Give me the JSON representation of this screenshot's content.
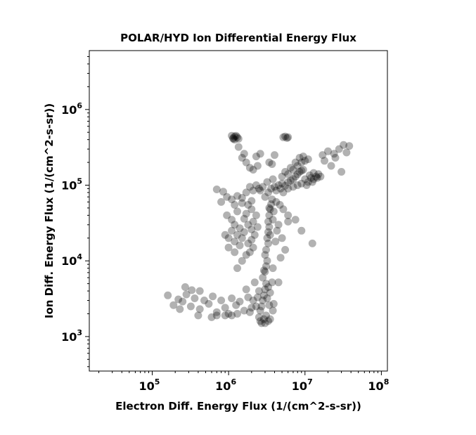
{
  "chart_data": {
    "type": "scatter",
    "title": "POLAR/HYD  Ion Differential Energy Flux",
    "xlabel": "Electron Diff. Energy Flux (1/(cm^2-s-sr))",
    "ylabel": "Ion Diff. Energy Flux (1/(cm^2-s-sr))",
    "xscale": "log",
    "yscale": "log",
    "xlim": [
      15000,
      120000000
    ],
    "ylim": [
      350,
      6000000
    ],
    "x_ticks": [
      {
        "base": "10",
        "exp": "5",
        "value": 100000
      },
      {
        "base": "10",
        "exp": "6",
        "value": 1000000
      },
      {
        "base": "10",
        "exp": "7",
        "value": 10000000
      },
      {
        "base": "10",
        "exp": "8",
        "value": 100000000
      }
    ],
    "y_ticks": [
      {
        "base": "10",
        "exp": "3",
        "value": 1000
      },
      {
        "base": "10",
        "exp": "4",
        "value": 10000
      },
      {
        "base": "10",
        "exp": "5",
        "value": 100000
      },
      {
        "base": "10",
        "exp": "6",
        "value": 1000000
      }
    ],
    "grid": false,
    "legend": "none",
    "marker_color": "#000000",
    "marker_alpha": 0.3,
    "series": [
      {
        "points": [
          [
            160000,
            3500
          ],
          [
            190000,
            2600
          ],
          [
            220000,
            3100
          ],
          [
            250000,
            2900
          ],
          [
            280000,
            3600
          ],
          [
            320000,
            2500
          ],
          [
            360000,
            3200
          ],
          [
            420000,
            2300
          ],
          [
            480000,
            3000
          ],
          [
            550000,
            2700
          ],
          [
            620000,
            3400
          ],
          [
            700000,
            2100
          ],
          [
            800000,
            3000
          ],
          [
            900000,
            2400
          ],
          [
            1000000,
            2000
          ],
          [
            1100000,
            3200
          ],
          [
            1250000,
            2600
          ],
          [
            1400000,
            2900
          ],
          [
            1600000,
            2200
          ],
          [
            1800000,
            3300
          ],
          [
            1900000,
            2100
          ],
          [
            2000000,
            2400
          ],
          [
            2100000,
            3000
          ],
          [
            1100000,
            1900
          ],
          [
            1300000,
            2000
          ],
          [
            700000,
            1900
          ],
          [
            900000,
            1900
          ],
          [
            600000,
            1800
          ],
          [
            400000,
            1900
          ],
          [
            230000,
            2300
          ],
          [
            270000,
            4500
          ],
          [
            330000,
            4100
          ],
          [
            420000,
            4000
          ],
          [
            1700000,
            4200
          ],
          [
            2500000,
            1800
          ],
          [
            2600000,
            1600
          ],
          [
            2700000,
            1500
          ],
          [
            2900000,
            1700
          ],
          [
            3000000,
            1500
          ],
          [
            3100000,
            1900
          ],
          [
            3300000,
            1600
          ],
          [
            3500000,
            1700
          ],
          [
            3800000,
            2200
          ],
          [
            3900000,
            2700
          ],
          [
            2700000,
            2500
          ],
          [
            2800000,
            3000
          ],
          [
            2900000,
            3500
          ],
          [
            3000000,
            4200
          ],
          [
            3100000,
            5000
          ],
          [
            2800000,
            6000
          ],
          [
            3000000,
            7200
          ],
          [
            3100000,
            8500
          ],
          [
            3200000,
            10000
          ],
          [
            3000000,
            12000
          ],
          [
            3100000,
            14000
          ],
          [
            3300000,
            17000
          ],
          [
            3200000,
            20000
          ],
          [
            3300000,
            24000
          ],
          [
            3400000,
            28000
          ],
          [
            3300000,
            33000
          ],
          [
            3400000,
            40000
          ],
          [
            3500000,
            48000
          ],
          [
            3600000,
            56000
          ],
          [
            3700000,
            65000
          ],
          [
            2500000,
            4000
          ],
          [
            3200000,
            3200
          ],
          [
            2600000,
            2200
          ],
          [
            3400000,
            2600
          ],
          [
            2300000,
            2500
          ],
          [
            2400000,
            3300
          ],
          [
            3500000,
            3800
          ],
          [
            3300000,
            4500
          ],
          [
            2200000,
            5200
          ],
          [
            3700000,
            5200
          ],
          [
            4500000,
            5200
          ],
          [
            3800000,
            8000
          ],
          [
            2900000,
            7500
          ],
          [
            1300000,
            8000
          ],
          [
            1500000,
            10000
          ],
          [
            1700000,
            12000
          ],
          [
            1900000,
            13000
          ],
          [
            2100000,
            15000
          ],
          [
            1400000,
            16000
          ],
          [
            1200000,
            18000
          ],
          [
            1000000,
            20000
          ],
          [
            900000,
            22000
          ],
          [
            1100000,
            25000
          ],
          [
            1300000,
            22000
          ],
          [
            1500000,
            20000
          ],
          [
            1800000,
            17000
          ],
          [
            2000000,
            19000
          ],
          [
            2200000,
            22000
          ],
          [
            1600000,
            24000
          ],
          [
            1400000,
            27000
          ],
          [
            1200000,
            30000
          ],
          [
            1800000,
            30000
          ],
          [
            2000000,
            26000
          ],
          [
            1100000,
            35000
          ],
          [
            950000,
            40000
          ],
          [
            1300000,
            45000
          ],
          [
            1700000,
            42000
          ],
          [
            2000000,
            48000
          ],
          [
            2300000,
            40000
          ],
          [
            1600000,
            36000
          ],
          [
            2100000,
            33000
          ],
          [
            2400000,
            28000
          ],
          [
            1000000,
            15000
          ],
          [
            1200000,
            13000
          ],
          [
            800000,
            60000
          ],
          [
            950000,
            70000
          ],
          [
            1100000,
            65000
          ],
          [
            1300000,
            72000
          ],
          [
            1500000,
            68000
          ],
          [
            1700000,
            80000
          ],
          [
            1900000,
            95000
          ],
          [
            2100000,
            85000
          ],
          [
            700000,
            88000
          ],
          [
            850000,
            82000
          ],
          [
            1200000,
            55000
          ],
          [
            1500000,
            58000
          ],
          [
            1800000,
            55000
          ],
          [
            2000000,
            62000
          ],
          [
            3000000,
            70000
          ],
          [
            3300000,
            80000
          ],
          [
            3600000,
            90000
          ],
          [
            4000000,
            95000
          ],
          [
            4500000,
            100000
          ],
          [
            5000000,
            105000
          ],
          [
            5500000,
            98000
          ],
          [
            6000000,
            110000
          ],
          [
            6500000,
            115000
          ],
          [
            7000000,
            120000
          ],
          [
            7500000,
            130000
          ],
          [
            8000000,
            140000
          ],
          [
            8500000,
            150000
          ],
          [
            9000000,
            155000
          ],
          [
            9500000,
            160000
          ],
          [
            2800000,
            95000
          ],
          [
            3200000,
            110000
          ],
          [
            3800000,
            120000
          ],
          [
            4200000,
            85000
          ],
          [
            4800000,
            90000
          ],
          [
            5200000,
            80000
          ],
          [
            6000000,
            90000
          ],
          [
            7000000,
            95000
          ],
          [
            8000000,
            100000
          ],
          [
            2500000,
            90000
          ],
          [
            2300000,
            100000
          ],
          [
            2600000,
            85000
          ],
          [
            5000000,
            130000
          ],
          [
            6000000,
            140000
          ],
          [
            7000000,
            160000
          ],
          [
            8000000,
            180000
          ],
          [
            9000000,
            200000
          ],
          [
            10000000,
            210000
          ],
          [
            11000000,
            220000
          ],
          [
            8500000,
            230000
          ],
          [
            9500000,
            240000
          ],
          [
            7500000,
            200000
          ],
          [
            6500000,
            170000
          ],
          [
            5500000,
            150000
          ],
          [
            10000000,
            120000
          ],
          [
            11000000,
            110000
          ],
          [
            12000000,
            125000
          ],
          [
            13000000,
            120000
          ],
          [
            14000000,
            130000
          ],
          [
            15000000,
            140000
          ],
          [
            16000000,
            130000
          ],
          [
            13000000,
            145000
          ],
          [
            11500000,
            135000
          ],
          [
            12500000,
            110000
          ],
          [
            14500000,
            125000
          ],
          [
            10500000,
            100000
          ],
          [
            9000000,
            105000
          ],
          [
            1100000,
            450000
          ],
          [
            1150000,
            420000
          ],
          [
            1200000,
            440000
          ],
          [
            1300000,
            430000
          ],
          [
            1200000,
            400000
          ],
          [
            1150000,
            410000
          ],
          [
            1350000,
            410000
          ],
          [
            1250000,
            450000
          ],
          [
            5200000,
            430000
          ],
          [
            5500000,
            440000
          ],
          [
            5800000,
            420000
          ],
          [
            6000000,
            430000
          ],
          [
            1500000,
            230000
          ],
          [
            1700000,
            200000
          ],
          [
            1900000,
            170000
          ],
          [
            2100000,
            160000
          ],
          [
            2400000,
            180000
          ],
          [
            2300000,
            240000
          ],
          [
            2600000,
            260000
          ],
          [
            3400000,
            200000
          ],
          [
            3700000,
            190000
          ],
          [
            4000000,
            250000
          ],
          [
            1350000,
            320000
          ],
          [
            1600000,
            260000
          ],
          [
            17000000,
            250000
          ],
          [
            20000000,
            280000
          ],
          [
            24000000,
            260000
          ],
          [
            28000000,
            300000
          ],
          [
            32000000,
            340000
          ],
          [
            38000000,
            330000
          ],
          [
            18000000,
            210000
          ],
          [
            22000000,
            180000
          ],
          [
            25000000,
            230000
          ],
          [
            30000000,
            150000
          ],
          [
            35000000,
            270000
          ],
          [
            6000000,
            40000
          ],
          [
            7500000,
            35000
          ],
          [
            9000000,
            25000
          ],
          [
            12500000,
            17000
          ],
          [
            5000000,
            20000
          ],
          [
            5500000,
            14000
          ],
          [
            4800000,
            11000
          ],
          [
            6000000,
            33000
          ],
          [
            4200000,
            60000
          ],
          [
            4700000,
            55000
          ],
          [
            5200000,
            48000
          ],
          [
            4500000,
            30000
          ],
          [
            3800000,
            35000
          ],
          [
            4300000,
            25000
          ],
          [
            3900000,
            45000
          ],
          [
            3400000,
            50000
          ],
          [
            4100000,
            18000
          ],
          [
            3500000,
            22000
          ]
        ]
      }
    ]
  }
}
